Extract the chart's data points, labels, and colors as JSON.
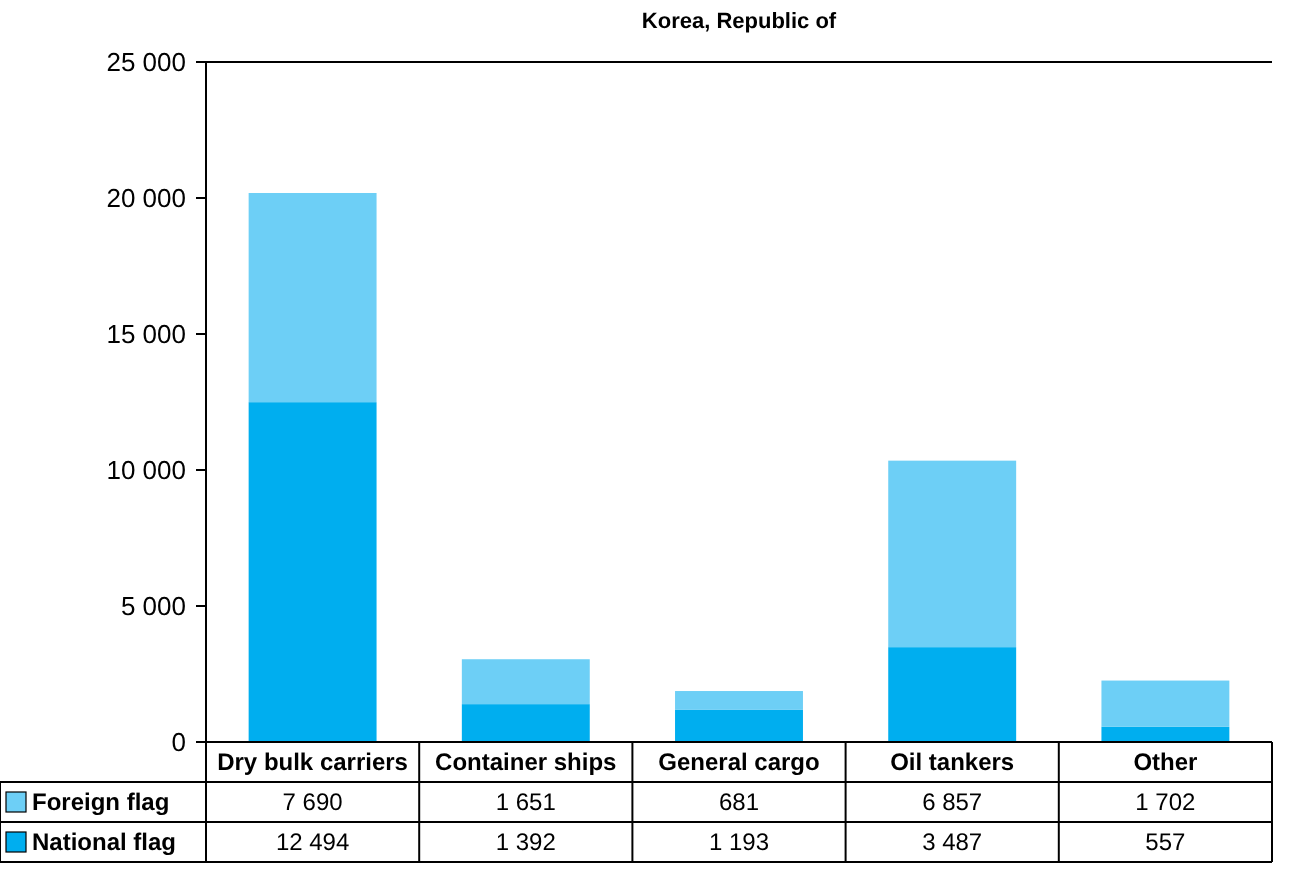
{
  "chart_data": {
    "type": "bar",
    "title": "Korea, Republic of",
    "categories": [
      "Dry bulk carriers",
      "Container ships",
      "General cargo",
      "Oil tankers",
      "Other"
    ],
    "stacked": true,
    "series": [
      {
        "name": "National flag",
        "color": "#00aeef",
        "values": [
          12494,
          1392,
          1193,
          3487,
          557
        ]
      },
      {
        "name": "Foreign flag",
        "color": "#6dcff6",
        "values": [
          7690,
          1651,
          681,
          6857,
          1702
        ]
      }
    ],
    "ylim": [
      0,
      25000
    ],
    "yticks": [
      0,
      {
        "value": 5000,
        "label": "5 000"
      },
      {
        "value": 10000,
        "label": "10 000"
      },
      {
        "value": 15000,
        "label": "15 000"
      },
      {
        "value": 20000,
        "label": "20 000"
      },
      {
        "value": 25000,
        "label": "25 000"
      }
    ],
    "data_labels": true,
    "legend": "bottom",
    "grid": false
  }
}
